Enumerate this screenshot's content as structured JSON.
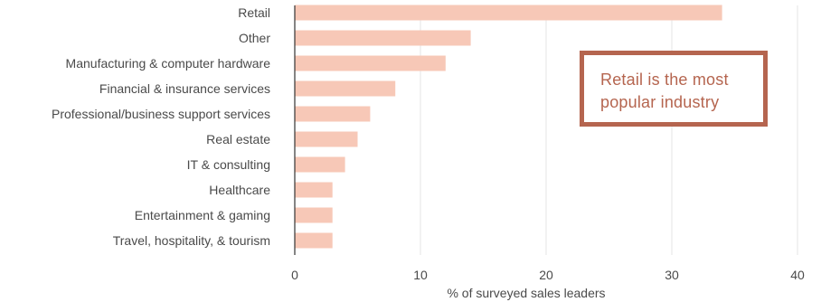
{
  "chart_data": {
    "type": "bar",
    "orientation": "horizontal",
    "categories": [
      "Retail",
      "Other",
      "Manufacturing & computer hardware",
      "Financial & insurance services",
      "Professional/business support services",
      "Real estate",
      "IT & consulting",
      "Healthcare",
      "Entertainment & gaming",
      "Travel, hospitality, & tourism"
    ],
    "values": [
      34,
      14,
      12,
      8,
      6,
      5,
      4,
      3,
      3,
      3
    ],
    "xlabel": "% of surveyed sales leaders",
    "ylabel": "",
    "xlim": [
      0,
      40
    ],
    "xticks": [
      0,
      10,
      20,
      30,
      40
    ],
    "grid": "vertical gridlines",
    "bar_color": "#f7c8b7",
    "axis_color": "#333333",
    "annotation": "Retail is the most popular industry",
    "annotation_color": "#b5654f"
  }
}
